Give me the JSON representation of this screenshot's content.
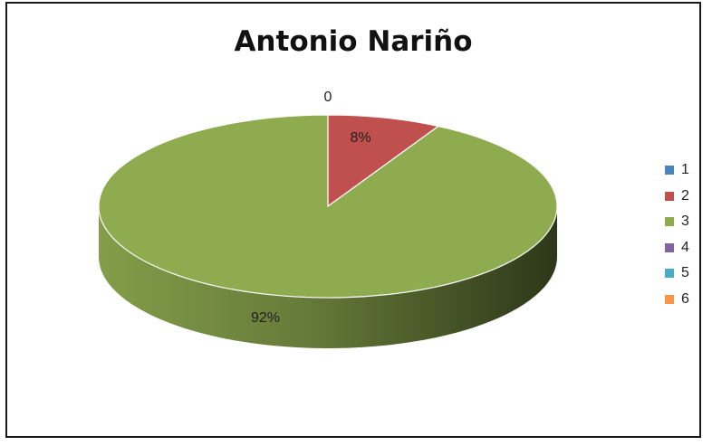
{
  "chart_data": {
    "type": "pie",
    "title": "Antonio Nariño",
    "categories": [
      "1",
      "2",
      "3",
      "4",
      "5",
      "6"
    ],
    "values": [
      0,
      8,
      92,
      0,
      0,
      0
    ],
    "data_labels": [
      "0",
      "8%",
      "92%",
      "",
      "",
      ""
    ],
    "colors": [
      "#4f81bd",
      "#c0504d",
      "#8eab4f",
      "#8064a2",
      "#4bacc6",
      "#f79646"
    ],
    "legend_position": "right"
  }
}
